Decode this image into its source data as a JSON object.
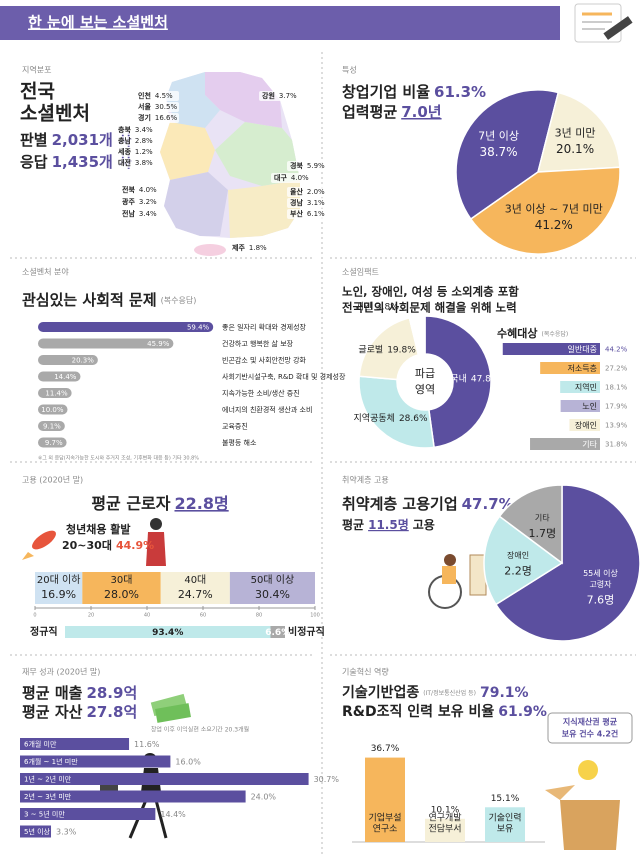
{
  "header": {
    "title": "한 눈에 보는 소셜벤처"
  },
  "region": {
    "label": "지역분포",
    "title": [
      "전국",
      "소셜벤처"
    ],
    "stats": [
      {
        "name": "판별",
        "value": "2,031개 사"
      },
      {
        "name": "응답",
        "value": "1,435개 사"
      }
    ],
    "regions": [
      {
        "name": "인천",
        "value": 4.5,
        "value_label": "4.5%"
      },
      {
        "name": "서울",
        "value": 30.5,
        "value_label": "30.5%"
      },
      {
        "name": "경기",
        "value": 16.6,
        "value_label": "16.6%"
      },
      {
        "name": "강원",
        "value": 3.7,
        "value_label": "3.7%"
      },
      {
        "name": "충북",
        "value": 3.4,
        "value_label": "3.4%"
      },
      {
        "name": "충남",
        "value": 2.8,
        "value_label": "2.8%"
      },
      {
        "name": "세종",
        "value": 1.2,
        "value_label": "1.2%"
      },
      {
        "name": "대전",
        "value": 3.8,
        "value_label": "3.8%"
      },
      {
        "name": "경북",
        "value": 5.9,
        "value_label": "5.9%"
      },
      {
        "name": "대구",
        "value": 4.0,
        "value_label": "4.0%"
      },
      {
        "name": "전북",
        "value": 4.0,
        "value_label": "4.0%"
      },
      {
        "name": "울산",
        "value": 2.0,
        "value_label": "2.0%"
      },
      {
        "name": "광주",
        "value": 3.2,
        "value_label": "3.2%"
      },
      {
        "name": "경남",
        "value": 3.1,
        "value_label": "3.1%"
      },
      {
        "name": "전남",
        "value": 3.4,
        "value_label": "3.4%"
      },
      {
        "name": "부산",
        "value": 6.1,
        "value_label": "6.1%"
      },
      {
        "name": "제주",
        "value": 1.8,
        "value_label": "1.8%"
      }
    ]
  },
  "profile": {
    "label": "특성",
    "lines": [
      {
        "text": "창업기업 비율",
        "value": "61.3%"
      },
      {
        "text": "업력평균",
        "value": "7.0년"
      }
    ],
    "pie": {
      "type": "pie",
      "categories": [
        "7년 이상",
        "3년 미만",
        "3년 이상 ~ 7년 미만"
      ],
      "values": [
        38.7,
        20.1,
        41.2
      ],
      "value_labels": [
        "38.7%",
        "20.1%",
        "41.2%"
      ],
      "colors": [
        "#5b4f9f",
        "#f6f0d8",
        "#f6b65c"
      ]
    }
  },
  "issues": {
    "label": "소셜벤처 분야",
    "title": "관심있는 사회적 문제",
    "note": "(복수응답)",
    "chart": {
      "type": "bar",
      "categories": [
        "좋은 일자리 확대와 경제성장",
        "건강하고 행복한 삶 보장",
        "빈곤감소 및 사회안전망 강화",
        "사회기반시설구축, R&D 확대 및 경제성장",
        "지속가능한 소비/생산 증진",
        "에너지의 친환경적 생산과 소비",
        "교육증진",
        "불평등 해소"
      ],
      "values": [
        59.4,
        45.9,
        20.3,
        14.4,
        11.4,
        10.0,
        9.1,
        9.7
      ],
      "value_labels": [
        "59.4%",
        "45.9%",
        "20.3%",
        "14.4%",
        "11.4%",
        "10.0%",
        "9.1%",
        "9.7%"
      ],
      "colors": [
        "#5b4f9f",
        "#a9a9a9",
        "#a9a9a9",
        "#a9a9a9",
        "#a9a9a9",
        "#a9a9a9",
        "#a9a9a9",
        "#a9a9a9"
      ]
    },
    "footnote": "※그 외 응답(지속가능한 도시와 주거지 조성, 기후변화 대응 등) 기타 30.8%"
  },
  "impact": {
    "label": "소셜임팩트",
    "lines": [
      "노인, 장애인, 여성 등 소외계층 포함",
      "전국민의 사회문제 해결을 위해 노력"
    ],
    "donut": {
      "type": "donut",
      "center": [
        "파급",
        "영역"
      ],
      "categories": [
        "국내",
        "지역공동체",
        "글로벌",
        "개인"
      ],
      "values": [
        47.8,
        28.6,
        19.8,
        3.8
      ],
      "value_labels": [
        "47.8%",
        "28.6%",
        "19.8%",
        "3.8%"
      ],
      "colors": [
        "#5b4f9f",
        "#bfe9ea",
        "#f6f0d8",
        "#ffffff"
      ]
    },
    "beneficiaries": {
      "title": "수혜대상",
      "note": "(복수응답)",
      "categories": [
        "일반대중",
        "저소득층",
        "지역민",
        "노인",
        "장애인",
        "기타"
      ],
      "values": [
        44.2,
        27.2,
        18.1,
        17.9,
        13.9,
        31.8
      ],
      "value_labels": [
        "44.2%",
        "27.2%",
        "18.1%",
        "17.9%",
        "13.9%",
        "31.8%"
      ],
      "colors": [
        "#5b4f9f",
        "#f6b65c",
        "#bfe9ea",
        "#b7b3d6",
        "#f6f0d8",
        "#a9a9a9"
      ]
    }
  },
  "employment": {
    "label": "고용 (2020년 말)",
    "title": "평균 근로자",
    "title_value": "22.8명",
    "youth": [
      "청년채용 활발",
      "20~30대"
    ],
    "youth_value": "44.9%",
    "ages": {
      "type": "stacked_bar",
      "categories": [
        "20대 이하",
        "30대",
        "40대",
        "50대 이상"
      ],
      "values": [
        16.9,
        28.0,
        24.7,
        30.4
      ],
      "value_labels": [
        "16.9%",
        "28.0%",
        "24.7%",
        "30.4%"
      ],
      "colors": [
        "#cfe2f2",
        "#f6b65c",
        "#f6f0d8",
        "#b7b3d6"
      ],
      "xlim": [
        0,
        100
      ],
      "xticks": [
        0,
        20,
        40,
        60,
        80,
        100
      ]
    },
    "contract": {
      "categories": [
        "정규직",
        "비정규직"
      ],
      "values": [
        93.4,
        6.6
      ],
      "value_labels": [
        "93.4%",
        "6.6%"
      ],
      "colors": [
        "#bfe9ea",
        "#a9a9a9"
      ]
    }
  },
  "vulnerable": {
    "label": "취약계층 고용",
    "title": "취약계층 고용기업",
    "title_value": "47.7%",
    "avg_prefix": "평균",
    "avg_value": "11.5명",
    "avg_suffix": "고용",
    "pie": {
      "type": "pie",
      "categories": [
        [
          "55세 이상",
          "고령자"
        ],
        [
          "장애인"
        ],
        [
          "기타"
        ]
      ],
      "values": [
        7.6,
        2.2,
        1.7
      ],
      "value_labels": [
        "7.6명",
        "2.2명",
        "1.7명"
      ],
      "colors": [
        "#5b4f9f",
        "#bfe9ea",
        "#a9a9a9"
      ]
    }
  },
  "finance": {
    "label": "재무 성과 (2020년 말)",
    "lines": [
      {
        "text": "평균 매출",
        "value": "28.9억"
      },
      {
        "text": "평균 자산",
        "value": "27.8억"
      }
    ],
    "subtitle": "창업 이후 이익실현 소요기간 20.3개월",
    "chart": {
      "type": "bar",
      "categories": [
        "6개월 미만",
        "6개월 ~ 1년 미만",
        "1년 ~ 2년 미만",
        "2년 ~ 3년 미만",
        "3 ~ 5년 미만",
        "5년 이상"
      ],
      "values": [
        11.6,
        16.0,
        30.7,
        24.0,
        14.4,
        3.3
      ],
      "value_labels": [
        "11.6%",
        "16.0%",
        "30.7%",
        "24.0%",
        "14.4%",
        "3.3%"
      ],
      "color": "#5b4f9f"
    }
  },
  "tech": {
    "label": "기술혁신 역량",
    "lines": [
      {
        "text": "기술기반업종",
        "note": "(IT/정보통신산업 등)",
        "value": "79.1%"
      },
      {
        "text": "R&D조직 인력 보유 비율",
        "value": "61.9%"
      }
    ],
    "chart": {
      "type": "column",
      "categories": [
        [
          "기업부설",
          "연구소"
        ],
        [
          "연구개발",
          "전담부서"
        ],
        [
          "기술인력",
          "보유"
        ]
      ],
      "values": [
        36.7,
        10.1,
        15.1
      ],
      "value_labels": [
        "36.7%",
        "10.1%",
        "15.1%"
      ],
      "colors": [
        "#f6b65c",
        "#f6f0d8",
        "#bfe9ea"
      ]
    },
    "ip": [
      "지식재산권 평균",
      "보유 건수 4.2건"
    ]
  }
}
